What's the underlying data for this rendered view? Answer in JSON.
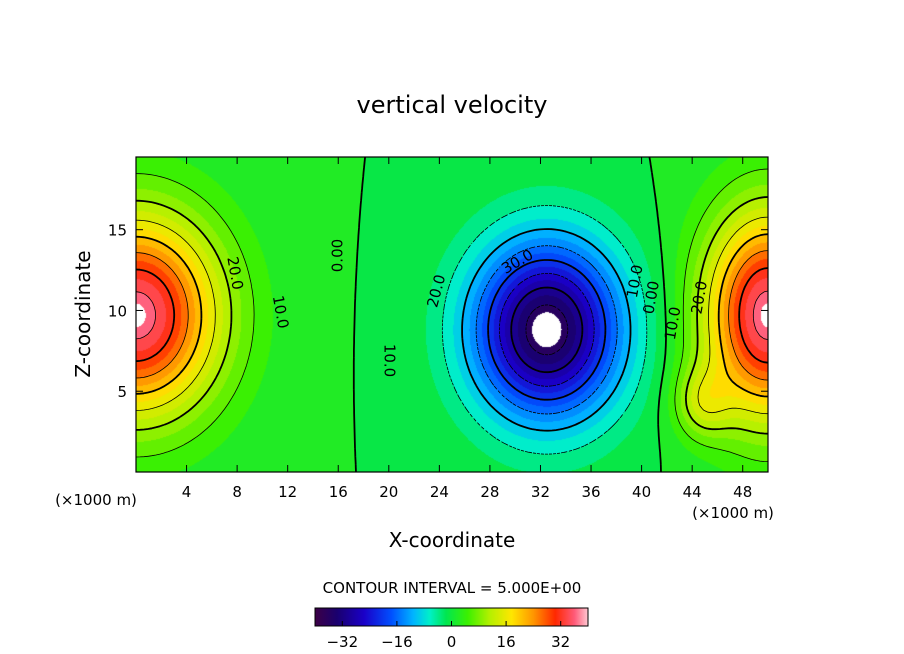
{
  "chart_data": {
    "type": "heatmap",
    "subtype": "filled-contour",
    "title": "vertical velocity",
    "xlabel": "X-coordinate",
    "ylabel": "Z-coordinate",
    "x_unit_left": "(×1000 m)",
    "x_unit_right": "(×1000 m)",
    "xlim": [
      0,
      50
    ],
    "ylim": [
      0,
      19.5
    ],
    "xticks": [
      4,
      8,
      12,
      16,
      20,
      24,
      28,
      32,
      36,
      40,
      44,
      48
    ],
    "yticks": [
      5,
      10,
      15
    ],
    "colormap": "rainbow",
    "colorbar": {
      "ticks": [
        -32,
        -16,
        0,
        16,
        32
      ],
      "tick_labels": [
        "−32",
        "−16",
        "0",
        "16",
        "32"
      ],
      "range": [
        -40,
        40
      ]
    },
    "contour_interval_text": "CONTOUR INTERVAL = 5.000E+00",
    "contour_labels": [
      {
        "text": "20.0",
        "x": 7.8,
        "z": 12.3,
        "angle": 80
      },
      {
        "text": "10.0",
        "x": 11.4,
        "z": 9.9,
        "angle": 80
      },
      {
        "text": "0.00",
        "x": 16.0,
        "z": 13.4,
        "angle": -90
      },
      {
        "text": "10.0",
        "x": 20.0,
        "z": 6.9,
        "angle": 90
      },
      {
        "text": "20.0",
        "x": 23.8,
        "z": 11.2,
        "angle": -75
      },
      {
        "text": "30.0",
        "x": 30.2,
        "z": 13.0,
        "angle": -30
      },
      {
        "text": "10.0",
        "x": 39.5,
        "z": 11.8,
        "angle": -80
      },
      {
        "text": "0.00",
        "x": 40.8,
        "z": 10.8,
        "angle": -80
      },
      {
        "text": "10.0",
        "x": 42.5,
        "z": 9.2,
        "angle": -80
      },
      {
        "text": "20.0",
        "x": 44.6,
        "z": 10.8,
        "angle": -80
      }
    ],
    "field_sources": [
      {
        "x": 0.0,
        "z": 9.7,
        "amp": 37,
        "sx": 6.6,
        "sz": 6.2
      },
      {
        "x": 50.0,
        "z": 9.7,
        "amp": 37,
        "sx": 5.0,
        "sz": 6.4
      },
      {
        "x": 32.5,
        "z": 8.8,
        "amp": -38,
        "sx": 5.8,
        "sz": 5.4
      },
      {
        "x": 44.8,
        "z": 4.3,
        "amp": 10,
        "sx": 2.2,
        "sz": 2.2
      }
    ]
  }
}
